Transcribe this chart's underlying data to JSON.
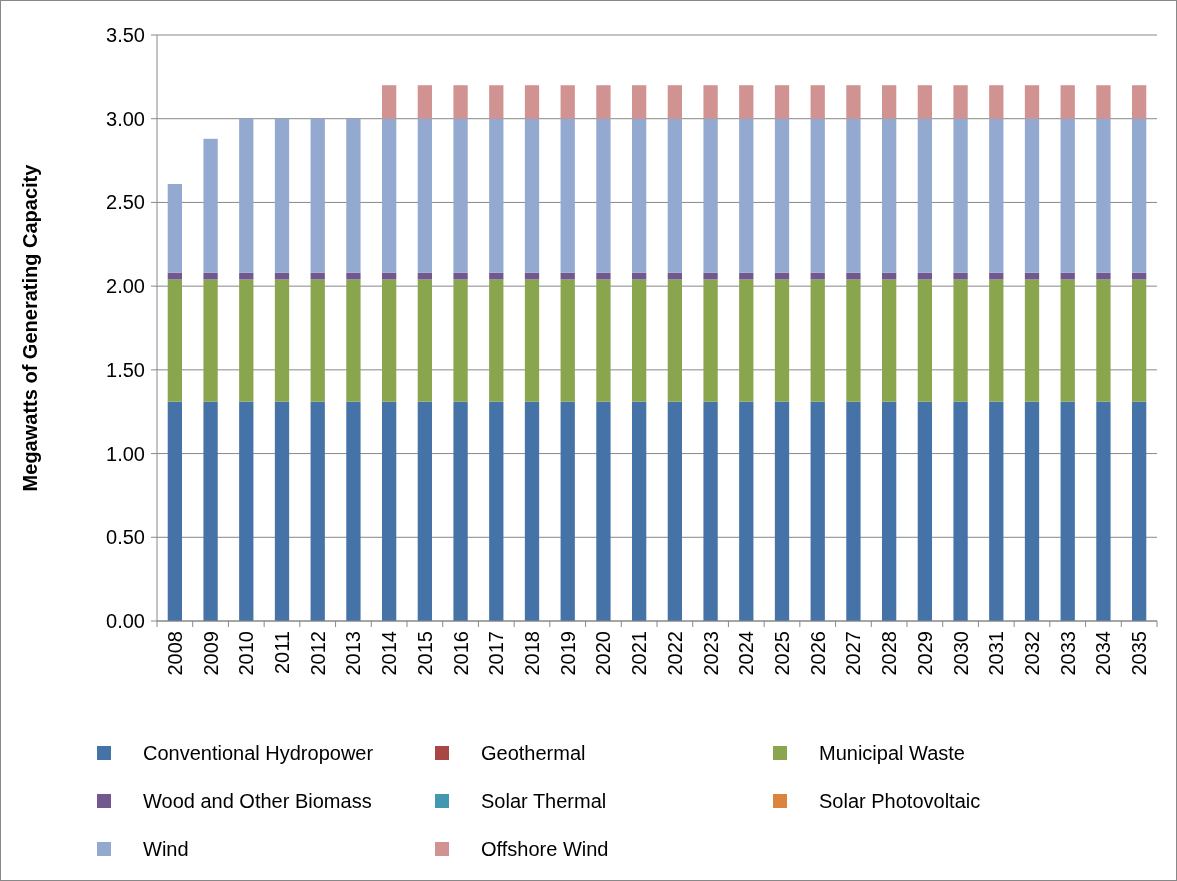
{
  "chart_data": {
    "type": "bar",
    "stacked": true,
    "ylabel": "Megawatts of Generating Capacity",
    "categories": [
      "2008",
      "2009",
      "2010",
      "2011",
      "2012",
      "2013",
      "2014",
      "2015",
      "2016",
      "2017",
      "2018",
      "2019",
      "2020",
      "2021",
      "2022",
      "2023",
      "2024",
      "2025",
      "2026",
      "2027",
      "2028",
      "2029",
      "2030",
      "2031",
      "2032",
      "2033",
      "2034",
      "2035"
    ],
    "series": [
      {
        "name": "Conventional Hydropower",
        "color": "#4572a7",
        "values": [
          1.31,
          1.31,
          1.31,
          1.31,
          1.31,
          1.31,
          1.31,
          1.31,
          1.31,
          1.31,
          1.31,
          1.31,
          1.31,
          1.31,
          1.31,
          1.31,
          1.31,
          1.31,
          1.31,
          1.31,
          1.31,
          1.31,
          1.31,
          1.31,
          1.31,
          1.31,
          1.31,
          1.31
        ]
      },
      {
        "name": "Geothermal",
        "color": "#aa4643",
        "values": [
          0,
          0,
          0,
          0,
          0,
          0,
          0,
          0,
          0,
          0,
          0,
          0,
          0,
          0,
          0,
          0,
          0,
          0,
          0,
          0,
          0,
          0,
          0,
          0,
          0,
          0,
          0,
          0
        ]
      },
      {
        "name": "Municipal Waste",
        "color": "#89a54e",
        "values": [
          0.73,
          0.73,
          0.73,
          0.73,
          0.73,
          0.73,
          0.73,
          0.73,
          0.73,
          0.73,
          0.73,
          0.73,
          0.73,
          0.73,
          0.73,
          0.73,
          0.73,
          0.73,
          0.73,
          0.73,
          0.73,
          0.73,
          0.73,
          0.73,
          0.73,
          0.73,
          0.73,
          0.73
        ]
      },
      {
        "name": "Wood and Other Biomass",
        "color": "#71588f",
        "values": [
          0.04,
          0.04,
          0.04,
          0.04,
          0.04,
          0.04,
          0.04,
          0.04,
          0.04,
          0.04,
          0.04,
          0.04,
          0.04,
          0.04,
          0.04,
          0.04,
          0.04,
          0.04,
          0.04,
          0.04,
          0.04,
          0.04,
          0.04,
          0.04,
          0.04,
          0.04,
          0.04,
          0.04
        ]
      },
      {
        "name": "Solar Thermal",
        "color": "#4198af",
        "values": [
          0,
          0,
          0,
          0,
          0,
          0,
          0,
          0,
          0,
          0,
          0,
          0,
          0,
          0,
          0,
          0,
          0,
          0,
          0,
          0,
          0,
          0,
          0,
          0,
          0,
          0,
          0,
          0
        ]
      },
      {
        "name": "Solar Photovoltaic",
        "color": "#db843d",
        "values": [
          0,
          0,
          0,
          0,
          0,
          0,
          0,
          0,
          0,
          0,
          0,
          0,
          0,
          0,
          0,
          0,
          0,
          0,
          0,
          0,
          0,
          0,
          0,
          0,
          0,
          0,
          0,
          0
        ]
      },
      {
        "name": "Wind",
        "color": "#93a9cf",
        "values": [
          0.53,
          0.8,
          0.92,
          0.92,
          0.92,
          0.92,
          0.92,
          0.92,
          0.92,
          0.92,
          0.92,
          0.92,
          0.92,
          0.92,
          0.92,
          0.92,
          0.92,
          0.92,
          0.92,
          0.92,
          0.92,
          0.92,
          0.92,
          0.92,
          0.92,
          0.92,
          0.92,
          0.92
        ]
      },
      {
        "name": "Offshore Wind",
        "color": "#d19392",
        "values": [
          0,
          0,
          0,
          0,
          0,
          0,
          0.2,
          0.2,
          0.2,
          0.2,
          0.2,
          0.2,
          0.2,
          0.2,
          0.2,
          0.2,
          0.2,
          0.2,
          0.2,
          0.2,
          0.2,
          0.2,
          0.2,
          0.2,
          0.2,
          0.2,
          0.2,
          0.2
        ]
      }
    ],
    "ylim": [
      0,
      3.5
    ],
    "yticks": [
      {
        "value": 0,
        "label": "0.00"
      },
      {
        "value": 0.5,
        "label": "0.50"
      },
      {
        "value": 1,
        "label": "1.00"
      },
      {
        "value": 1.5,
        "label": "1.50"
      },
      {
        "value": 2,
        "label": "2.00"
      },
      {
        "value": 2.5,
        "label": "2.50"
      },
      {
        "value": 3,
        "label": "3.00"
      },
      {
        "value": 3.5,
        "label": "3.50"
      }
    ],
    "grid": "y",
    "legend": "bottom"
  }
}
